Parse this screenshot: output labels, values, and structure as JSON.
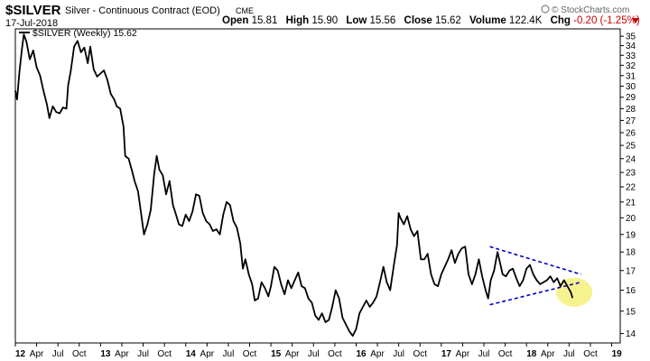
{
  "header": {
    "symbol": "$SILVER",
    "description": "Silver - Continuous Contract (EOD)",
    "exchange": "CME",
    "date": "17-Jul-2018",
    "open_label": "Open",
    "open_value": "15.81",
    "high_label": "High",
    "high_value": "15.90",
    "low_label": "Low",
    "low_value": "15.56",
    "close_label": "Close",
    "close_value": "15.62",
    "volume_label": "Volume",
    "volume_value": "122.4K",
    "chg_label": "Chg",
    "chg_value": "-0.20 (-1.25%)",
    "copyright": "© StockCharts.com"
  },
  "legend": {
    "text": "$SILVER (Weekly) 15.62"
  },
  "colors": {
    "price_line": "#000000",
    "trendline": "#0000cc",
    "highlight_fill": "#f5f07a",
    "change_negative": "#cc0000"
  },
  "icons": {
    "change_arrow": "down-triangle-icon",
    "copyright_mark": "stockcharts-logo-icon"
  },
  "chart_data": {
    "type": "line",
    "x_unit": "fractional year",
    "xlim": [
      2012.0,
      2019.1
    ],
    "ylim": [
      13.6,
      35.8
    ],
    "y_scale": "log",
    "y_axis_side": "right",
    "grid": false,
    "legend_position": "top-left",
    "y_ticks": [
      14,
      15,
      16,
      17,
      18,
      19,
      20,
      21,
      22,
      23,
      24,
      25,
      26,
      27,
      28,
      29,
      30,
      31,
      32,
      33,
      34,
      35
    ],
    "x_ticks": [
      {
        "x": 2012.0,
        "label": "12",
        "year": true
      },
      {
        "x": 2012.25,
        "label": "Apr"
      },
      {
        "x": 2012.5,
        "label": "Jul"
      },
      {
        "x": 2012.75,
        "label": "Oct"
      },
      {
        "x": 2013.0,
        "label": "13",
        "year": true
      },
      {
        "x": 2013.25,
        "label": "Apr"
      },
      {
        "x": 2013.5,
        "label": "Jul"
      },
      {
        "x": 2013.75,
        "label": "Oct"
      },
      {
        "x": 2014.0,
        "label": "14",
        "year": true
      },
      {
        "x": 2014.25,
        "label": "Apr"
      },
      {
        "x": 2014.5,
        "label": "Jul"
      },
      {
        "x": 2014.75,
        "label": "Oct"
      },
      {
        "x": 2015.0,
        "label": "15",
        "year": true
      },
      {
        "x": 2015.25,
        "label": "Apr"
      },
      {
        "x": 2015.5,
        "label": "Jul"
      },
      {
        "x": 2015.75,
        "label": "Oct"
      },
      {
        "x": 2016.0,
        "label": "16",
        "year": true
      },
      {
        "x": 2016.25,
        "label": "Apr"
      },
      {
        "x": 2016.5,
        "label": "Jul"
      },
      {
        "x": 2016.75,
        "label": "Oct"
      },
      {
        "x": 2017.0,
        "label": "17",
        "year": true
      },
      {
        "x": 2017.25,
        "label": "Apr"
      },
      {
        "x": 2017.5,
        "label": "Jul"
      },
      {
        "x": 2017.75,
        "label": "Oct"
      },
      {
        "x": 2018.0,
        "label": "18",
        "year": true
      },
      {
        "x": 2018.25,
        "label": "Apr"
      },
      {
        "x": 2018.5,
        "label": "Jul"
      },
      {
        "x": 2018.75,
        "label": "Oct"
      },
      {
        "x": 2019.0,
        "label": "19",
        "year": true
      }
    ],
    "series": [
      {
        "values": [
          [
            2012.0,
            29.6
          ],
          [
            2012.02,
            28.8
          ],
          [
            2012.05,
            31.5
          ],
          [
            2012.08,
            33.8
          ],
          [
            2012.1,
            35.2
          ],
          [
            2012.13,
            34.4
          ],
          [
            2012.17,
            32.6
          ],
          [
            2012.21,
            33.5
          ],
          [
            2012.25,
            31.8
          ],
          [
            2012.29,
            31.0
          ],
          [
            2012.33,
            29.6
          ],
          [
            2012.37,
            28.4
          ],
          [
            2012.4,
            27.2
          ],
          [
            2012.44,
            28.2
          ],
          [
            2012.48,
            27.7
          ],
          [
            2012.52,
            27.6
          ],
          [
            2012.56,
            28.1
          ],
          [
            2012.6,
            28.0
          ],
          [
            2012.62,
            30.1
          ],
          [
            2012.65,
            31.4
          ],
          [
            2012.69,
            33.9
          ],
          [
            2012.73,
            34.5
          ],
          [
            2012.77,
            33.3
          ],
          [
            2012.81,
            33.8
          ],
          [
            2012.85,
            32.2
          ],
          [
            2012.88,
            33.9
          ],
          [
            2012.92,
            31.6
          ],
          [
            2012.96,
            30.9
          ],
          [
            2013.0,
            31.2
          ],
          [
            2013.04,
            31.5
          ],
          [
            2013.08,
            30.6
          ],
          [
            2013.12,
            29.3
          ],
          [
            2013.16,
            28.8
          ],
          [
            2013.19,
            28.2
          ],
          [
            2013.23,
            28.0
          ],
          [
            2013.27,
            26.5
          ],
          [
            2013.29,
            24.2
          ],
          [
            2013.33,
            24.0
          ],
          [
            2013.37,
            23.1
          ],
          [
            2013.4,
            22.4
          ],
          [
            2013.44,
            21.7
          ],
          [
            2013.48,
            20.1
          ],
          [
            2013.51,
            19.0
          ],
          [
            2013.55,
            19.6
          ],
          [
            2013.59,
            20.5
          ],
          [
            2013.63,
            22.9
          ],
          [
            2013.66,
            24.2
          ],
          [
            2013.69,
            23.2
          ],
          [
            2013.73,
            22.8
          ],
          [
            2013.77,
            21.5
          ],
          [
            2013.81,
            22.4
          ],
          [
            2013.85,
            20.8
          ],
          [
            2013.88,
            20.3
          ],
          [
            2013.92,
            19.6
          ],
          [
            2013.96,
            19.5
          ],
          [
            2014.0,
            20.2
          ],
          [
            2014.04,
            19.8
          ],
          [
            2014.08,
            20.4
          ],
          [
            2014.12,
            21.5
          ],
          [
            2014.16,
            21.4
          ],
          [
            2014.2,
            20.3
          ],
          [
            2014.24,
            19.8
          ],
          [
            2014.28,
            19.6
          ],
          [
            2014.32,
            19.2
          ],
          [
            2014.36,
            19.3
          ],
          [
            2014.4,
            19.0
          ],
          [
            2014.44,
            20.2
          ],
          [
            2014.48,
            21.0
          ],
          [
            2014.52,
            20.8
          ],
          [
            2014.56,
            19.8
          ],
          [
            2014.6,
            19.4
          ],
          [
            2014.64,
            18.5
          ],
          [
            2014.67,
            17.1
          ],
          [
            2014.7,
            17.6
          ],
          [
            2014.74,
            16.8
          ],
          [
            2014.78,
            16.3
          ],
          [
            2014.81,
            15.5
          ],
          [
            2014.85,
            15.6
          ],
          [
            2014.89,
            16.4
          ],
          [
            2014.93,
            16.1
          ],
          [
            2014.97,
            15.7
          ],
          [
            2015.0,
            16.2
          ],
          [
            2015.04,
            17.2
          ],
          [
            2015.08,
            17.0
          ],
          [
            2015.12,
            16.3
          ],
          [
            2015.16,
            15.8
          ],
          [
            2015.2,
            16.5
          ],
          [
            2015.24,
            16.1
          ],
          [
            2015.28,
            16.5
          ],
          [
            2015.32,
            16.9
          ],
          [
            2015.36,
            16.2
          ],
          [
            2015.4,
            16.1
          ],
          [
            2015.44,
            15.6
          ],
          [
            2015.48,
            15.4
          ],
          [
            2015.52,
            14.8
          ],
          [
            2015.56,
            14.6
          ],
          [
            2015.6,
            14.9
          ],
          [
            2015.64,
            14.5
          ],
          [
            2015.68,
            14.6
          ],
          [
            2015.72,
            15.2
          ],
          [
            2015.76,
            16.0
          ],
          [
            2015.8,
            15.6
          ],
          [
            2015.84,
            14.7
          ],
          [
            2015.88,
            14.4
          ],
          [
            2015.92,
            14.1
          ],
          [
            2015.96,
            13.9
          ],
          [
            2016.0,
            14.2
          ],
          [
            2016.04,
            14.9
          ],
          [
            2016.08,
            15.2
          ],
          [
            2016.12,
            15.5
          ],
          [
            2016.16,
            15.2
          ],
          [
            2016.2,
            15.4
          ],
          [
            2016.24,
            15.7
          ],
          [
            2016.28,
            16.4
          ],
          [
            2016.32,
            17.2
          ],
          [
            2016.36,
            16.4
          ],
          [
            2016.4,
            16.0
          ],
          [
            2016.44,
            17.2
          ],
          [
            2016.48,
            18.4
          ],
          [
            2016.5,
            20.3
          ],
          [
            2016.52,
            20.0
          ],
          [
            2016.56,
            19.6
          ],
          [
            2016.6,
            20.1
          ],
          [
            2016.64,
            19.3
          ],
          [
            2016.68,
            18.9
          ],
          [
            2016.72,
            19.2
          ],
          [
            2016.76,
            17.6
          ],
          [
            2016.8,
            17.6
          ],
          [
            2016.84,
            17.9
          ],
          [
            2016.88,
            16.8
          ],
          [
            2016.92,
            16.3
          ],
          [
            2016.96,
            16.2
          ],
          [
            2017.0,
            16.8
          ],
          [
            2017.04,
            17.2
          ],
          [
            2017.08,
            17.6
          ],
          [
            2017.12,
            18.1
          ],
          [
            2017.16,
            17.4
          ],
          [
            2017.2,
            17.9
          ],
          [
            2017.24,
            18.2
          ],
          [
            2017.28,
            18.3
          ],
          [
            2017.32,
            16.8
          ],
          [
            2017.36,
            16.3
          ],
          [
            2017.4,
            16.8
          ],
          [
            2017.44,
            17.6
          ],
          [
            2017.48,
            16.7
          ],
          [
            2017.52,
            16.0
          ],
          [
            2017.55,
            15.6
          ],
          [
            2017.58,
            16.5
          ],
          [
            2017.62,
            17.0
          ],
          [
            2017.66,
            18.0
          ],
          [
            2017.68,
            17.6
          ],
          [
            2017.72,
            16.8
          ],
          [
            2017.76,
            16.7
          ],
          [
            2017.8,
            17.0
          ],
          [
            2017.84,
            17.1
          ],
          [
            2017.88,
            16.6
          ],
          [
            2017.92,
            16.2
          ],
          [
            2017.96,
            16.5
          ],
          [
            2018.0,
            17.1
          ],
          [
            2018.04,
            17.3
          ],
          [
            2018.08,
            16.8
          ],
          [
            2018.12,
            16.5
          ],
          [
            2018.16,
            16.3
          ],
          [
            2018.2,
            16.4
          ],
          [
            2018.24,
            16.5
          ],
          [
            2018.28,
            16.7
          ],
          [
            2018.32,
            16.4
          ],
          [
            2018.36,
            16.6
          ],
          [
            2018.4,
            16.2
          ],
          [
            2018.44,
            16.5
          ],
          [
            2018.48,
            16.2
          ],
          [
            2018.52,
            15.9
          ],
          [
            2018.54,
            15.62
          ]
        ]
      }
    ],
    "trendlines": [
      {
        "from": [
          2017.57,
          15.3
        ],
        "to": [
          2018.64,
          16.4
        ]
      },
      {
        "from": [
          2017.57,
          18.3
        ],
        "to": [
          2018.64,
          16.8
        ]
      }
    ],
    "highlight": {
      "center": [
        2018.56,
        15.9
      ]
    }
  }
}
